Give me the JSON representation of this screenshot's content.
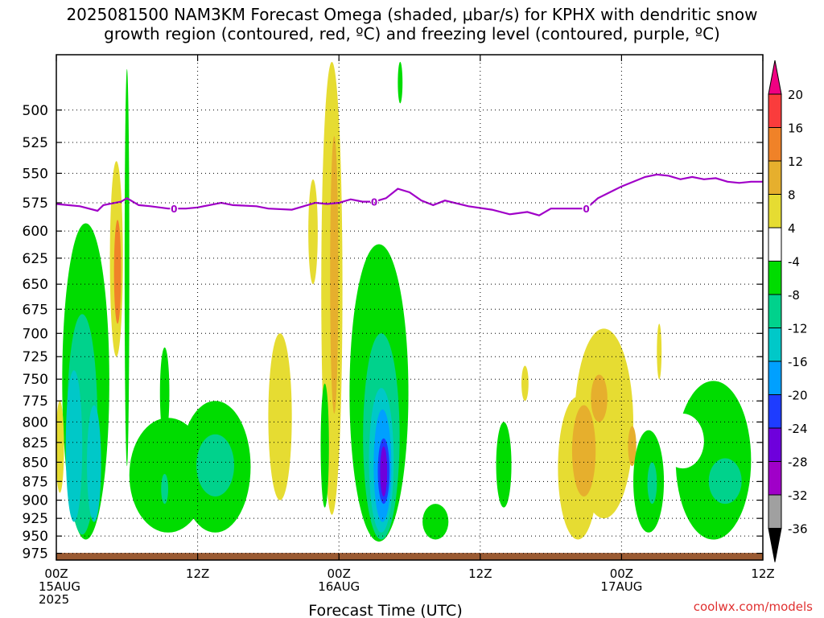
{
  "title_line1": "2025081500 NAM3KM Forecast Omega (shaded, μbar/s) for KPHX with dendritic snow",
  "title_line2": "growth region (contoured, red, ºC) and freezing level (contoured, purple, ºC)",
  "credit": "coolwx.com/models",
  "chart_data": {
    "type": "heatmap",
    "title": "2025081500 NAM3KM Forecast Omega (shaded, μbar/s) for KPHX with dendritic snow growth region (contoured, red, ºC) and freezing level (contoured, purple, ºC)",
    "xlabel": "Forecast Time (UTC)",
    "ylabel": "",
    "x_range_hours": [
      0,
      60
    ],
    "x_ticks": [
      {
        "hour": 0,
        "labels": [
          "00Z",
          "15AUG",
          "2025"
        ]
      },
      {
        "hour": 12,
        "labels": [
          "12Z"
        ]
      },
      {
        "hour": 24,
        "labels": [
          "00Z",
          "16AUG"
        ]
      },
      {
        "hour": 36,
        "labels": [
          "12Z"
        ]
      },
      {
        "hour": 48,
        "labels": [
          "00Z",
          "17AUG"
        ]
      },
      {
        "hour": 60,
        "labels": [
          "12Z"
        ]
      }
    ],
    "y_scale": "log",
    "y_inverted": true,
    "y_range_hPa": [
      985,
      460
    ],
    "y_ticks": [
      500,
      525,
      550,
      575,
      600,
      625,
      650,
      675,
      700,
      725,
      750,
      775,
      800,
      825,
      850,
      875,
      900,
      925,
      950,
      975
    ],
    "grid": true,
    "colorbar": {
      "levels": [
        -36,
        -32,
        -28,
        -24,
        -20,
        -16,
        -12,
        -8,
        -4,
        4,
        8,
        12,
        16,
        20
      ],
      "tick_labels": [
        "20",
        "16",
        "12",
        "8",
        "4",
        "-4",
        "-8",
        "-12",
        "-16",
        "-20",
        "-24",
        "-28",
        "-32",
        "-36"
      ],
      "colors": {
        "lt_-36": "#000000",
        "-36_-32": "#a0a0a0",
        "-32_-28": "#a000c8",
        "-28_-24": "#6e00dc",
        "-24_-20": "#1e3cff",
        "-20_-16": "#00a0ff",
        "-16_-12": "#00c8c8",
        "-12_-8": "#00d28c",
        "-8_-4": "#00dc00",
        "-4_4": "#ffffff",
        "4_8": "#e6dc32",
        "8_12": "#e6af2d",
        "12_16": "#f08228",
        "16_20": "#fa3c3c",
        "gt_20": "#f00082"
      }
    },
    "freezing_level": {
      "color": "#a000c8",
      "label": "0",
      "label_hours": [
        10,
        27,
        45
      ],
      "points": [
        [
          0,
          576
        ],
        [
          2,
          578
        ],
        [
          3.5,
          582
        ],
        [
          4,
          577
        ],
        [
          5.5,
          574
        ],
        [
          6,
          571
        ],
        [
          7,
          577
        ],
        [
          8,
          578
        ],
        [
          9.5,
          580
        ],
        [
          11,
          580
        ],
        [
          12,
          579
        ],
        [
          13,
          577
        ],
        [
          14,
          575
        ],
        [
          15,
          577
        ],
        [
          17,
          578
        ],
        [
          18,
          580
        ],
        [
          20,
          581
        ],
        [
          21,
          578
        ],
        [
          22,
          575
        ],
        [
          23,
          576
        ],
        [
          24,
          575
        ],
        [
          25,
          572
        ],
        [
          26,
          574
        ],
        [
          27,
          574
        ],
        [
          28,
          571
        ],
        [
          29,
          563
        ],
        [
          30,
          566
        ],
        [
          31,
          573
        ],
        [
          32,
          577
        ],
        [
          33,
          573
        ],
        [
          35,
          578
        ],
        [
          37,
          581
        ],
        [
          38.5,
          585
        ],
        [
          40,
          583
        ],
        [
          41,
          586
        ],
        [
          42,
          580
        ],
        [
          44,
          580
        ],
        [
          45,
          580
        ],
        [
          46,
          571
        ],
        [
          48,
          561
        ],
        [
          50,
          553
        ],
        [
          51,
          551
        ],
        [
          52,
          552
        ],
        [
          53,
          555
        ],
        [
          54,
          553
        ],
        [
          55,
          555
        ],
        [
          56,
          554
        ],
        [
          57,
          557
        ],
        [
          58,
          558
        ],
        [
          59,
          557
        ],
        [
          60,
          557
        ]
      ]
    },
    "ground_pressure_hPa": 978
  }
}
